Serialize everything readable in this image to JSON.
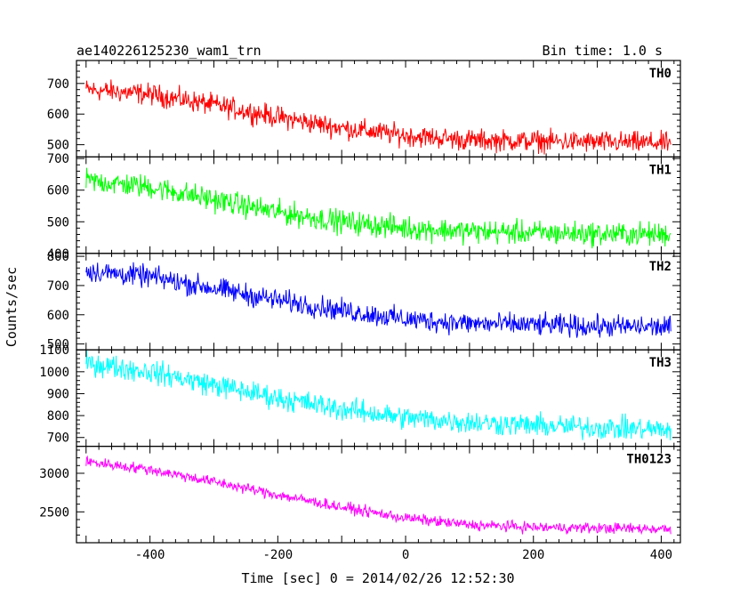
{
  "header": {
    "title": "ae140226125230_wam1_trn",
    "bin_label": "Bin time: 1.0 s"
  },
  "chart_data": {
    "type": "line",
    "title": "ae140226125230_wam1_trn",
    "xlabel": "Time [sec] 0 = 2014/02/26 12:52:30",
    "ylabel": "Counts/sec",
    "xlim": [
      -515,
      430
    ],
    "x_ticks": [
      -400,
      -200,
      0,
      200,
      400
    ],
    "x_range_data": [
      -500,
      415
    ],
    "grid": false,
    "legend": "none",
    "panels": [
      {
        "name": "TH0",
        "color": "#ff0000",
        "ylim": [
          460,
          775
        ],
        "y_ticks": [
          500,
          600,
          700
        ],
        "x": [
          -500,
          -400,
          -300,
          -200,
          -100,
          0,
          100,
          200,
          300,
          415
        ],
        "y": [
          680,
          665,
          630,
          590,
          555,
          530,
          515,
          512,
          508,
          505
        ],
        "noise_amplitude": 30
      },
      {
        "name": "TH1",
        "color": "#00ff00",
        "ylim": [
          400,
          705
        ],
        "y_ticks": [
          400,
          500,
          600,
          700
        ],
        "x": [
          -500,
          -400,
          -300,
          -200,
          -100,
          0,
          100,
          200,
          300,
          415
        ],
        "y": [
          630,
          610,
          570,
          530,
          500,
          480,
          470,
          465,
          462,
          460
        ],
        "noise_amplitude": 32
      },
      {
        "name": "TH2",
        "color": "#0000ff",
        "ylim": [
          480,
          810
        ],
        "y_ticks": [
          500,
          600,
          700,
          800
        ],
        "x": [
          -500,
          -400,
          -300,
          -200,
          -100,
          0,
          100,
          200,
          300,
          415
        ],
        "y": [
          750,
          730,
          690,
          650,
          615,
          585,
          570,
          565,
          560,
          558
        ],
        "noise_amplitude": 32
      },
      {
        "name": "TH3",
        "color": "#00ffff",
        "ylim": [
          660,
          1100
        ],
        "y_ticks": [
          700,
          800,
          900,
          1000,
          1100
        ],
        "x": [
          -500,
          -400,
          -300,
          -200,
          -100,
          0,
          100,
          200,
          300,
          415
        ],
        "y": [
          1040,
          1000,
          940,
          880,
          830,
          790,
          770,
          755,
          745,
          735
        ],
        "noise_amplitude": 45
      },
      {
        "name": "TH0123",
        "color": "#ff00ff",
        "ylim": [
          2100,
          3350
        ],
        "y_ticks": [
          2500,
          3000
        ],
        "x": [
          -500,
          -400,
          -300,
          -200,
          -100,
          0,
          100,
          200,
          300,
          415
        ],
        "y": [
          3150,
          3050,
          2890,
          2720,
          2560,
          2420,
          2330,
          2300,
          2290,
          2280
        ],
        "noise_amplitude": 60
      }
    ]
  }
}
